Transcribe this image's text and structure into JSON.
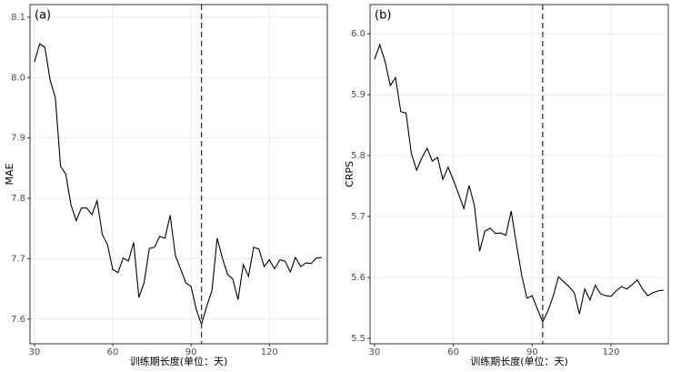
{
  "chart_data": [
    {
      "type": "line",
      "panel": "(a)",
      "y_label": "MAE",
      "x_label": "训练期长度(单位：天)",
      "x": [
        30,
        32,
        34,
        36,
        38,
        40,
        42,
        44,
        46,
        48,
        50,
        52,
        54,
        56,
        58,
        60,
        62,
        64,
        66,
        68,
        70,
        72,
        74,
        76,
        78,
        80,
        82,
        84,
        86,
        88,
        90,
        92,
        94,
        96,
        98,
        100,
        102,
        104,
        106,
        108,
        110,
        112,
        114,
        116,
        118,
        120,
        122,
        124,
        126,
        128,
        130,
        132,
        134,
        136,
        138,
        140
      ],
      "series": [
        {
          "name": "MAE",
          "color": "#000000",
          "values": [
            8.026,
            8.056,
            8.05,
            7.996,
            7.967,
            7.853,
            7.84,
            7.789,
            7.763,
            7.784,
            7.784,
            7.773,
            7.796,
            7.74,
            7.723,
            7.682,
            7.677,
            7.701,
            7.696,
            7.727,
            7.636,
            7.66,
            7.717,
            7.719,
            7.737,
            7.734,
            7.772,
            7.705,
            7.683,
            7.66,
            7.654,
            7.616,
            7.591,
            7.621,
            7.647,
            7.734,
            7.701,
            7.674,
            7.666,
            7.632,
            7.69,
            7.671,
            7.719,
            7.716,
            7.687,
            7.698,
            7.683,
            7.698,
            7.696,
            7.678,
            7.702,
            7.687,
            7.693,
            7.692,
            7.701,
            7.702
          ]
        }
      ],
      "vline": 94,
      "xlim": [
        28.3,
        142.2
      ],
      "ylim": [
        7.559,
        8.121
      ],
      "xticks": [
        30,
        60,
        90,
        120
      ],
      "yticks": [
        {
          "value": 7.6,
          "label": "7.6"
        },
        {
          "value": 7.7,
          "label": "7.7"
        },
        {
          "value": 7.8,
          "label": "7.8"
        },
        {
          "value": 7.9,
          "label": "7.9"
        },
        {
          "value": 8.0,
          "label": "8.0"
        },
        {
          "value": 8.1,
          "label": "8.1"
        }
      ],
      "grid": true
    },
    {
      "type": "line",
      "panel": "(b)",
      "y_label": "CRPS",
      "x_label": "训练期长度(单位：天)",
      "x": [
        30,
        32,
        34,
        36,
        38,
        40,
        42,
        44,
        46,
        48,
        50,
        52,
        54,
        56,
        58,
        60,
        62,
        64,
        66,
        68,
        70,
        72,
        74,
        76,
        78,
        80,
        82,
        84,
        86,
        88,
        90,
        92,
        94,
        96,
        98,
        100,
        102,
        104,
        106,
        108,
        110,
        112,
        114,
        116,
        118,
        120,
        122,
        124,
        126,
        128,
        130,
        132,
        134,
        136,
        138,
        140
      ],
      "series": [
        {
          "name": "CRPS",
          "color": "#000000",
          "values": [
            5.958,
            5.982,
            5.955,
            5.915,
            5.928,
            5.872,
            5.87,
            5.804,
            5.776,
            5.796,
            5.812,
            5.791,
            5.797,
            5.761,
            5.781,
            5.76,
            5.737,
            5.713,
            5.751,
            5.718,
            5.643,
            5.676,
            5.681,
            5.672,
            5.673,
            5.669,
            5.709,
            5.655,
            5.604,
            5.566,
            5.57,
            5.548,
            5.527,
            5.545,
            5.569,
            5.601,
            5.593,
            5.585,
            5.575,
            5.54,
            5.581,
            5.563,
            5.587,
            5.573,
            5.57,
            5.569,
            5.578,
            5.585,
            5.581,
            5.588,
            5.596,
            5.581,
            5.57,
            5.575,
            5.578,
            5.579
          ]
        }
      ],
      "vline": 94,
      "xlim": [
        28.3,
        141.8
      ],
      "ylim": [
        5.491,
        6.048
      ],
      "xticks": [
        30,
        60,
        90,
        120
      ],
      "yticks": [
        {
          "value": 5.5,
          "label": "5.5"
        },
        {
          "value": 5.6,
          "label": "5.6"
        },
        {
          "value": 5.7,
          "label": "5.7"
        },
        {
          "value": 5.8,
          "label": "5.8"
        },
        {
          "value": 5.9,
          "label": "5.9"
        },
        {
          "value": 6.0,
          "label": "6.0"
        }
      ],
      "grid": true
    }
  ]
}
